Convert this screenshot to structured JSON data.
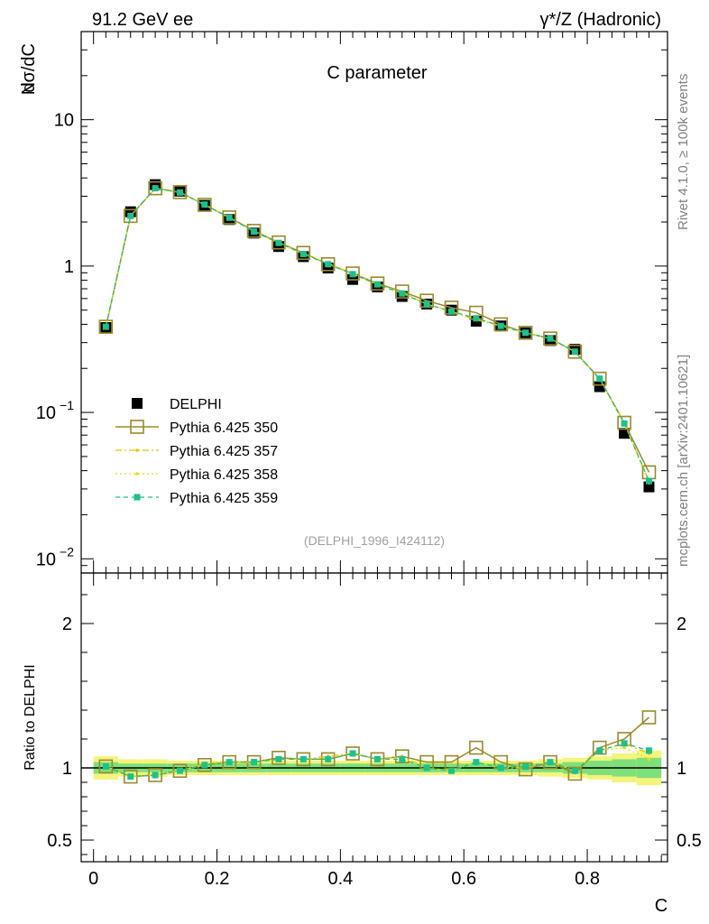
{
  "header": {
    "left": "91.2 GeV ee",
    "right": "γ*/Z (Hadronic)"
  },
  "side_labels": {
    "rivet": "Rivet 4.1.0, ≥ 100k events",
    "mcplots": "mcplots.cern.ch [arXiv:2401.10621]"
  },
  "colors": {
    "data": "#000000",
    "p350": "#9a8a2a",
    "p357": "#e6c200",
    "p358": "#e8e000",
    "p359": "#1ac28c",
    "band_inner": "#7ee07a",
    "band_outer": "#f4f47a"
  },
  "chart_data": [
    {
      "type": "scatter",
      "title": "C parameter",
      "ylabel_n": "N",
      "ylabel": "dσ/dC",
      "yscale": "log",
      "ylim": [
        0.008,
        40
      ],
      "xlim": [
        -0.02,
        0.93
      ],
      "yticks": [
        {
          "v": 10,
          "label": "10"
        },
        {
          "v": 1,
          "label": "1"
        },
        {
          "v": 0.1,
          "label": "10",
          "exp": "−1"
        },
        {
          "v": 0.01,
          "label": "10",
          "exp": "−2"
        }
      ],
      "watermark": "(DELPHI_1996_I424112)",
      "x": [
        0.02,
        0.06,
        0.1,
        0.14,
        0.18,
        0.22,
        0.26,
        0.3,
        0.34,
        0.38,
        0.42,
        0.46,
        0.5,
        0.54,
        0.58,
        0.62,
        0.66,
        0.7,
        0.74,
        0.78,
        0.82,
        0.86,
        0.9
      ],
      "series": [
        {
          "name": "DELPHI",
          "style": "data",
          "values": [
            0.38,
            2.35,
            3.6,
            3.25,
            2.6,
            2.08,
            1.68,
            1.36,
            1.16,
            0.97,
            0.81,
            0.72,
            0.62,
            0.55,
            0.5,
            0.42,
            0.39,
            0.35,
            0.31,
            0.27,
            0.15,
            0.072,
            0.031
          ]
        },
        {
          "name": "Pythia 6.425 350",
          "style": "p350",
          "values": [
            0.385,
            2.2,
            3.4,
            3.2,
            2.62,
            2.15,
            1.74,
            1.45,
            1.23,
            1.03,
            0.89,
            0.76,
            0.67,
            0.58,
            0.52,
            0.48,
            0.4,
            0.35,
            0.32,
            0.26,
            0.17,
            0.085,
            0.039
          ]
        },
        {
          "name": "Pythia 6.425 357",
          "style": "p357",
          "values": [
            0.385,
            2.2,
            3.4,
            3.18,
            2.63,
            2.14,
            1.73,
            1.44,
            1.22,
            1.04,
            0.88,
            0.75,
            0.66,
            0.55,
            0.49,
            0.43,
            0.39,
            0.35,
            0.32,
            0.26,
            0.17,
            0.085,
            0.034
          ]
        },
        {
          "name": "Pythia 6.425 358",
          "style": "p358",
          "values": [
            0.385,
            2.2,
            3.4,
            3.18,
            2.63,
            2.14,
            1.72,
            1.43,
            1.21,
            1.05,
            0.89,
            0.75,
            0.66,
            0.55,
            0.49,
            0.44,
            0.39,
            0.35,
            0.32,
            0.26,
            0.17,
            0.084,
            0.033
          ]
        },
        {
          "name": "Pythia 6.425 359",
          "style": "p359",
          "values": [
            0.385,
            2.2,
            3.4,
            3.18,
            2.63,
            2.14,
            1.72,
            1.44,
            1.21,
            1.03,
            0.88,
            0.75,
            0.65,
            0.55,
            0.49,
            0.44,
            0.39,
            0.35,
            0.32,
            0.26,
            0.17,
            0.084,
            0.034
          ]
        }
      ]
    },
    {
      "type": "line",
      "ylabel": "Ratio to DELPHI",
      "xlabel": "C",
      "ylim": [
        0.35,
        2.35
      ],
      "xlim": [
        -0.02,
        0.93
      ],
      "yticks": [
        {
          "v": 2,
          "label": "2"
        },
        {
          "v": 1,
          "label": "1"
        },
        {
          "v": 0.5,
          "label": "0.5"
        }
      ],
      "xticks": [
        {
          "v": 0,
          "label": "0"
        },
        {
          "v": 0.2,
          "label": "0.2"
        },
        {
          "v": 0.4,
          "label": "0.4"
        },
        {
          "v": 0.6,
          "label": "0.6"
        },
        {
          "v": 0.8,
          "label": "0.8"
        }
      ],
      "x": [
        0.02,
        0.06,
        0.1,
        0.14,
        0.18,
        0.22,
        0.26,
        0.3,
        0.34,
        0.38,
        0.42,
        0.46,
        0.5,
        0.54,
        0.58,
        0.62,
        0.66,
        0.7,
        0.74,
        0.78,
        0.82,
        0.86,
        0.9
      ],
      "band_inner": [
        0.04,
        0.03,
        0.03,
        0.03,
        0.03,
        0.03,
        0.03,
        0.03,
        0.03,
        0.03,
        0.03,
        0.03,
        0.03,
        0.03,
        0.03,
        0.03,
        0.03,
        0.03,
        0.03,
        0.04,
        0.05,
        0.06,
        0.07
      ],
      "band_outer": [
        0.08,
        0.06,
        0.06,
        0.05,
        0.05,
        0.05,
        0.05,
        0.05,
        0.05,
        0.05,
        0.05,
        0.05,
        0.05,
        0.05,
        0.05,
        0.05,
        0.05,
        0.05,
        0.06,
        0.07,
        0.08,
        0.1,
        0.12
      ],
      "series": [
        {
          "name": "Pythia 6.425 350",
          "style": "p350",
          "values": [
            1.01,
            0.94,
            0.95,
            0.98,
            1.02,
            1.04,
            1.04,
            1.07,
            1.06,
            1.06,
            1.1,
            1.06,
            1.08,
            1.04,
            1.04,
            1.14,
            1.04,
            0.99,
            1.04,
            0.96,
            1.14,
            1.2,
            1.35
          ]
        },
        {
          "name": "Pythia 6.425 357",
          "style": "p357",
          "values": [
            1.01,
            0.94,
            0.95,
            0.98,
            1.03,
            1.04,
            1.04,
            1.06,
            1.06,
            1.08,
            1.1,
            1.06,
            1.08,
            1.0,
            0.98,
            1.04,
            1.0,
            1.0,
            1.04,
            0.98,
            1.12,
            1.17,
            1.1
          ]
        },
        {
          "name": "Pythia 6.425 358",
          "style": "p358",
          "values": [
            1.01,
            0.94,
            0.95,
            0.98,
            1.02,
            1.04,
            1.04,
            1.06,
            1.06,
            1.07,
            1.1,
            1.06,
            1.07,
            1.0,
            0.98,
            1.04,
            1.0,
            1.01,
            1.04,
            0.98,
            1.12,
            1.14,
            1.06
          ]
        },
        {
          "name": "Pythia 6.425 359",
          "style": "p359",
          "values": [
            1.01,
            0.94,
            0.95,
            0.98,
            1.02,
            1.04,
            1.04,
            1.06,
            1.06,
            1.06,
            1.1,
            1.06,
            1.06,
            1.0,
            0.98,
            1.04,
            1.0,
            1.01,
            1.04,
            0.98,
            1.12,
            1.17,
            1.12
          ]
        }
      ]
    }
  ]
}
